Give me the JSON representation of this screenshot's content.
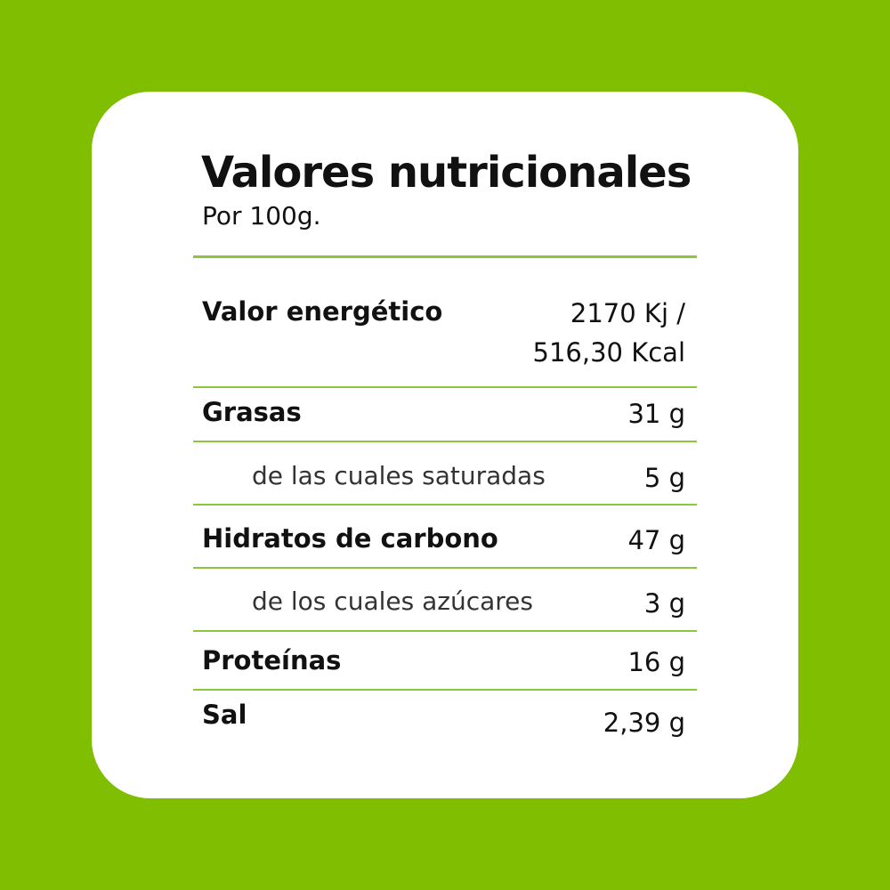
{
  "title": "Valores nutricionales",
  "subtitle": "Por 100g.",
  "rows": [
    {
      "label": "Valor energético",
      "value_line1": "2170 Kj /",
      "value_line2": "516,30 Kcal"
    },
    {
      "label": "Grasas",
      "value": "31 g"
    },
    {
      "label": "de las cuales saturadas",
      "value": "5 g"
    },
    {
      "label": "Hidratos de carbono",
      "value": "47 g"
    },
    {
      "label": "de los cuales azúcares",
      "value": "3 g"
    },
    {
      "label": "Proteínas",
      "value": "16 g"
    },
    {
      "label": "Sal",
      "value": "2,39 g"
    }
  ],
  "colors": {
    "background": "#7fbe00",
    "divider": "#8cc63f",
    "card": "#ffffff"
  }
}
